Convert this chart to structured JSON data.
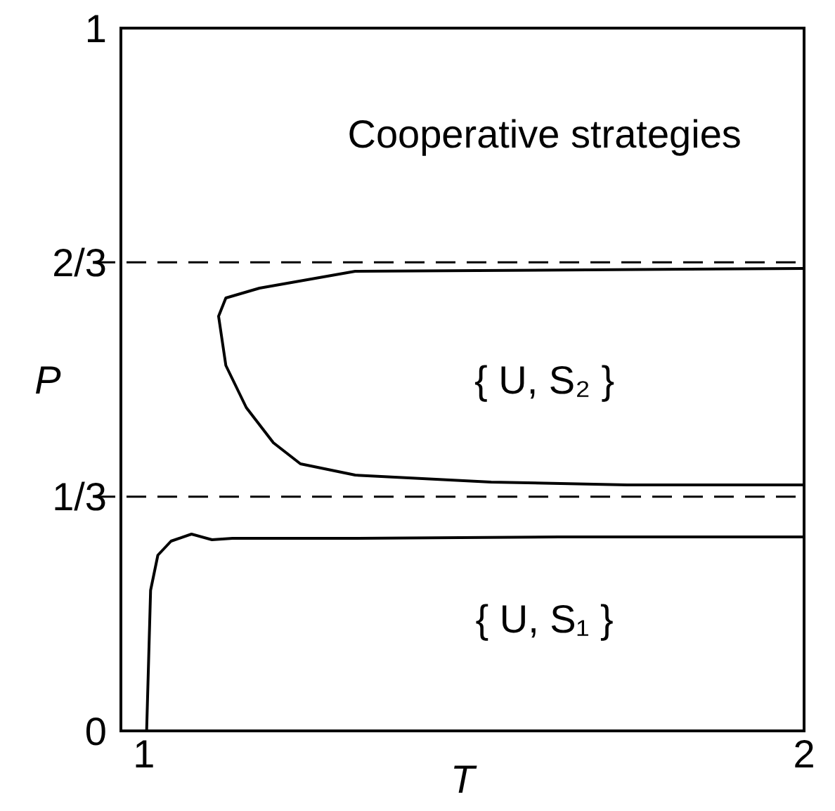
{
  "chart_data": {
    "type": "line",
    "xlabel": "T",
    "ylabel": "P",
    "xlim": [
      0.965,
      2
    ],
    "xticks": [
      1,
      2
    ],
    "ylim": [
      0,
      1
    ],
    "yticks": [
      0,
      {
        "value": 0.3333,
        "label": "1/3"
      },
      {
        "value": 0.6667,
        "label": "2/3"
      },
      1
    ],
    "series": [
      {
        "color": "#000000",
        "x": [
          1.004,
          1.01,
          1.021,
          1.041,
          1.072,
          1.103,
          1.134,
          1.32,
          1.629,
          2.0
        ],
        "values": [
          0,
          0.2,
          0.25,
          0.27,
          0.28,
          0.272,
          0.274,
          0.274,
          0.276,
          0.276
        ]
      },
      {
        "color": "#000000",
        "x": [
          2.0,
          1.32,
          1.175,
          1.124,
          1.113,
          1.124,
          1.155,
          1.196,
          1.237,
          1.32,
          1.526,
          1.732,
          2.0
        ],
        "values": [
          0.658,
          0.654,
          0.63,
          0.616,
          0.59,
          0.52,
          0.46,
          0.41,
          0.38,
          0.364,
          0.354,
          0.35,
          0.35
        ]
      }
    ],
    "ref_lines": [
      {
        "axis": "y",
        "value": 0.3333,
        "line_style": "dashed",
        "color": "#000000"
      },
      {
        "axis": "y",
        "value": 0.6667,
        "line_style": "dashed",
        "color": "#000000"
      }
    ],
    "annotations": [
      "Cooperative strategies",
      "{ U, S₂ }",
      "{ U, S₁ }"
    ],
    "grid": false,
    "line_style": "solid",
    "marker": "none"
  }
}
